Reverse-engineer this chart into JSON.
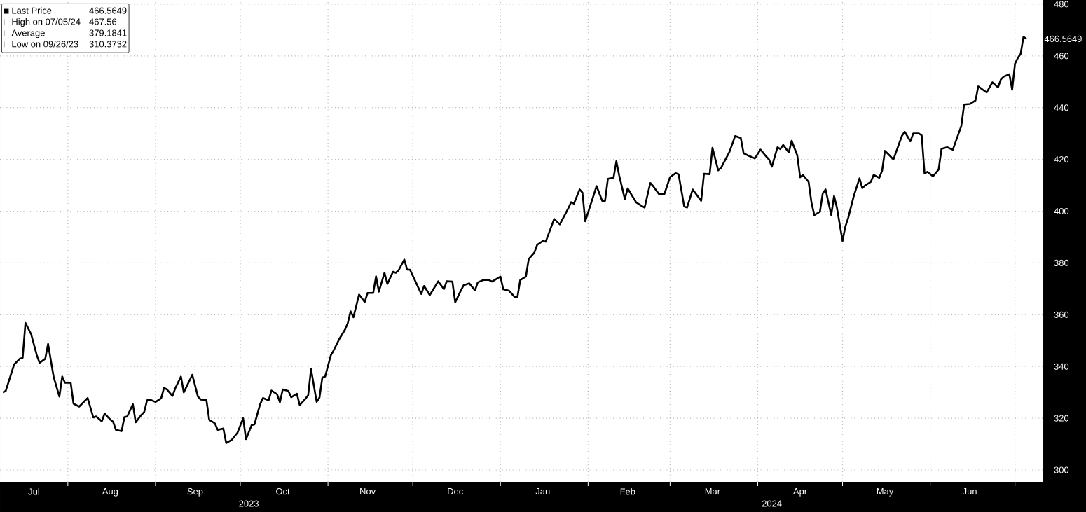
{
  "chart_data": {
    "type": "line",
    "color": "#000000",
    "grid": true,
    "xlim": [
      "2023-07-08",
      "2024-07-11"
    ],
    "ylim": [
      295.4,
      481.6
    ],
    "xticks": [
      {
        "value": "2023-08-01",
        "label": null
      },
      {
        "value": "2023-09-01",
        "label": null
      },
      {
        "value": "2023-10-01",
        "label": null
      },
      {
        "value": "2023-11-01",
        "label": null
      },
      {
        "value": "2023-12-01",
        "label": null
      },
      {
        "value": "2024-01-01",
        "label": null
      },
      {
        "value": "2024-02-01",
        "label": null
      },
      {
        "value": "2024-03-01",
        "label": null
      },
      {
        "value": "2024-04-01",
        "label": null
      },
      {
        "value": "2024-05-01",
        "label": null
      },
      {
        "value": "2024-06-01",
        "label": null
      },
      {
        "value": "2024-07-01",
        "label": null
      },
      {
        "value": "2023-07-20",
        "label": "Jul"
      },
      {
        "value": "2023-08-16",
        "label": "Aug"
      },
      {
        "value": "2023-09-15",
        "label": "Sep"
      },
      {
        "value": "2023-10-16",
        "label": "Oct"
      },
      {
        "value": "2023-11-15",
        "label": "Nov"
      },
      {
        "value": "2023-12-16",
        "label": "Dec"
      },
      {
        "value": "2024-01-16",
        "label": "Jan"
      },
      {
        "value": "2024-02-15",
        "label": "Feb"
      },
      {
        "value": "2024-03-16",
        "label": "Mar"
      },
      {
        "value": "2024-04-16",
        "label": "Apr"
      },
      {
        "value": "2024-05-16",
        "label": "May"
      },
      {
        "value": "2024-06-15",
        "label": "Jun"
      }
    ],
    "yticks": [
      300,
      320,
      340,
      360,
      380,
      400,
      420,
      440,
      460,
      480
    ],
    "annotations": [
      "Last Price",
      "466.5649",
      "High on 07/05/24",
      "467.56",
      "Average",
      "379.1841",
      "Low on 09/26/23",
      "310.3732",
      "466.5649",
      "2023",
      "2024"
    ],
    "x": [
      "2023-07-09",
      "2023-07-10",
      "2023-07-13",
      "2023-07-15",
      "2023-07-16",
      "2023-07-17",
      "2023-07-19",
      "2023-07-21",
      "2023-07-22",
      "2023-07-24",
      "2023-07-25",
      "2023-07-27",
      "2023-07-29",
      "2023-07-30",
      "2023-07-31",
      "2023-08-02",
      "2023-08-03",
      "2023-08-05",
      "2023-08-08",
      "2023-08-10",
      "2023-08-11",
      "2023-08-13",
      "2023-08-14",
      "2023-08-16",
      "2023-08-17",
      "2023-08-18",
      "2023-08-20",
      "2023-08-21",
      "2023-08-22",
      "2023-08-24",
      "2023-08-25",
      "2023-08-27",
      "2023-08-28",
      "2023-08-29",
      "2023-08-30",
      "2023-09-01",
      "2023-09-03",
      "2023-09-04",
      "2023-09-05",
      "2023-09-07",
      "2023-09-08",
      "2023-09-10",
      "2023-09-11",
      "2023-09-13",
      "2023-09-14",
      "2023-09-16",
      "2023-09-17",
      "2023-09-19",
      "2023-09-20",
      "2023-09-22",
      "2023-09-23",
      "2023-09-25",
      "2023-09-26",
      "2023-09-28",
      "2023-09-30",
      "2023-10-02",
      "2023-10-03",
      "2023-10-05",
      "2023-10-06",
      "2023-10-08",
      "2023-10-09",
      "2023-10-11",
      "2023-10-12",
      "2023-10-14",
      "2023-10-15",
      "2023-10-16",
      "2023-10-18",
      "2023-10-19",
      "2023-10-21",
      "2023-10-22",
      "2023-10-24",
      "2023-10-25",
      "2023-10-26",
      "2023-10-28",
      "2023-10-29",
      "2023-10-30",
      "2023-10-31",
      "2023-11-02",
      "2023-11-03",
      "2023-11-05",
      "2023-11-07",
      "2023-11-08",
      "2023-11-09",
      "2023-11-10",
      "2023-11-12",
      "2023-11-14",
      "2023-11-15",
      "2023-11-17",
      "2023-11-18",
      "2023-11-19",
      "2023-11-21",
      "2023-11-22",
      "2023-11-24",
      "2023-11-25",
      "2023-11-26",
      "2023-11-28",
      "2023-11-29",
      "2023-11-30",
      "2023-12-04",
      "2023-12-05",
      "2023-12-07",
      "2023-12-10",
      "2023-12-12",
      "2023-12-13",
      "2023-12-15",
      "2023-12-16",
      "2023-12-18",
      "2023-12-19",
      "2023-12-21",
      "2023-12-23",
      "2023-12-24",
      "2023-12-26",
      "2023-12-28",
      "2023-12-29",
      "2024-01-01",
      "2024-01-02",
      "2024-01-04",
      "2024-01-06",
      "2024-01-07",
      "2024-01-08",
      "2024-01-10",
      "2024-01-11",
      "2024-01-13",
      "2024-01-14",
      "2024-01-16",
      "2024-01-17",
      "2024-01-20",
      "2024-01-22",
      "2024-01-25",
      "2024-01-26",
      "2024-01-27",
      "2024-01-29",
      "2024-01-30",
      "2024-01-31",
      "2024-02-04",
      "2024-02-06",
      "2024-02-07",
      "2024-02-08",
      "2024-02-10",
      "2024-02-11",
      "2024-02-12",
      "2024-02-14",
      "2024-02-15",
      "2024-02-18",
      "2024-02-20",
      "2024-02-21",
      "2024-02-23",
      "2024-02-24",
      "2024-02-26",
      "2024-02-28",
      "2024-03-01",
      "2024-03-03",
      "2024-03-04",
      "2024-03-06",
      "2024-03-07",
      "2024-03-09",
      "2024-03-12",
      "2024-03-13",
      "2024-03-15",
      "2024-03-16",
      "2024-03-18",
      "2024-03-19",
      "2024-03-22",
      "2024-03-24",
      "2024-03-26",
      "2024-03-27",
      "2024-03-29",
      "2024-03-31",
      "2024-04-02",
      "2024-04-04",
      "2024-04-05",
      "2024-04-06",
      "2024-04-08",
      "2024-04-09",
      "2024-04-10",
      "2024-04-12",
      "2024-04-13",
      "2024-04-15",
      "2024-04-16",
      "2024-04-17",
      "2024-04-19",
      "2024-04-20",
      "2024-04-21",
      "2024-04-23",
      "2024-04-24",
      "2024-04-25",
      "2024-04-27",
      "2024-04-28",
      "2024-04-29",
      "2024-05-01",
      "2024-05-02",
      "2024-05-03",
      "2024-05-05",
      "2024-05-07",
      "2024-05-08",
      "2024-05-09",
      "2024-05-11",
      "2024-05-12",
      "2024-05-14",
      "2024-05-15",
      "2024-05-16",
      "2024-05-19",
      "2024-05-22",
      "2024-05-23",
      "2024-05-25",
      "2024-05-26",
      "2024-05-28",
      "2024-05-29",
      "2024-05-30",
      "2024-05-31",
      "2024-06-02",
      "2024-06-04",
      "2024-06-05",
      "2024-06-07",
      "2024-06-09",
      "2024-06-12",
      "2024-06-13",
      "2024-06-15",
      "2024-06-17",
      "2024-06-18",
      "2024-06-20",
      "2024-06-21",
      "2024-06-23",
      "2024-06-25",
      "2024-06-26",
      "2024-06-27",
      "2024-06-29",
      "2024-06-30",
      "2024-07-01",
      "2024-07-02",
      "2024-07-03",
      "2024-07-04",
      "2024-07-05"
    ],
    "values": [
      330.0,
      330.5,
      340.8,
      343.0,
      343.3,
      356.8,
      352.5,
      344.4,
      341.4,
      343.0,
      348.7,
      335.8,
      328.4,
      336.1,
      333.7,
      333.7,
      325.6,
      324.5,
      327.8,
      320.3,
      320.7,
      318.8,
      321.8,
      319.5,
      318.6,
      315.5,
      315.0,
      320.4,
      320.7,
      325.4,
      318.4,
      321.3,
      322.4,
      326.9,
      327.2,
      326.3,
      327.7,
      331.7,
      331.2,
      328.6,
      331.6,
      336.1,
      330.0,
      334.5,
      336.8,
      328.4,
      327.2,
      327.1,
      319.4,
      318.0,
      315.5,
      316.0,
      310.4,
      311.7,
      314.4,
      320.0,
      311.9,
      317.3,
      317.6,
      325.4,
      327.8,
      326.9,
      330.7,
      329.3,
      326.2,
      331.1,
      330.5,
      328.1,
      329.5,
      325.1,
      327.5,
      328.9,
      339.0,
      326.3,
      328.0,
      335.7,
      336.1,
      344.3,
      346.2,
      350.6,
      354.2,
      356.7,
      361.3,
      359.0,
      367.8,
      364.9,
      368.4,
      368.4,
      374.8,
      368.9,
      376.2,
      371.9,
      376.6,
      376.2,
      377.2,
      381.3,
      377.4,
      377.4,
      368.0,
      371.1,
      367.6,
      372.9,
      369.9,
      372.9,
      372.8,
      364.8,
      369.3,
      371.4,
      372.1,
      369.4,
      372.5,
      373.4,
      373.4,
      372.8,
      374.7,
      369.8,
      369.3,
      366.9,
      366.7,
      373.4,
      374.7,
      381.5,
      384.0,
      387.0,
      388.5,
      388.2,
      397.0,
      394.9,
      401.1,
      403.5,
      402.9,
      408.4,
      407.2,
      396.1,
      409.7,
      404.0,
      404.0,
      412.5,
      412.9,
      419.3,
      413.8,
      404.7,
      408.8,
      403.4,
      402.0,
      401.4,
      410.9,
      409.7,
      406.7,
      406.7,
      413.2,
      414.7,
      414.3,
      401.8,
      401.4,
      408.4,
      404.0,
      414.5,
      414.3,
      424.5,
      415.8,
      416.7,
      422.9,
      429.0,
      428.3,
      422.4,
      421.3,
      420.4,
      423.8,
      421.1,
      420.0,
      417.2,
      424.7,
      424.0,
      425.6,
      422.7,
      427.2,
      421.5,
      413.1,
      414.0,
      411.3,
      403.4,
      398.5,
      399.8,
      406.9,
      408.4,
      398.5,
      405.9,
      401.4,
      388.5,
      394.1,
      397.4,
      406.0,
      412.7,
      408.9,
      410.0,
      411.3,
      414.0,
      412.9,
      415.7,
      423.3,
      420.0,
      429.1,
      430.7,
      427.0,
      430.0,
      430.0,
      429.3,
      414.6,
      415.2,
      413.5,
      416.1,
      424.1,
      424.7,
      423.7,
      432.9,
      441.2,
      441.4,
      442.7,
      448.2,
      446.6,
      445.9,
      449.8,
      447.8,
      450.9,
      452.0,
      452.9,
      446.9,
      457.0,
      459.2,
      460.8,
      467.4,
      466.6
    ]
  }
}
